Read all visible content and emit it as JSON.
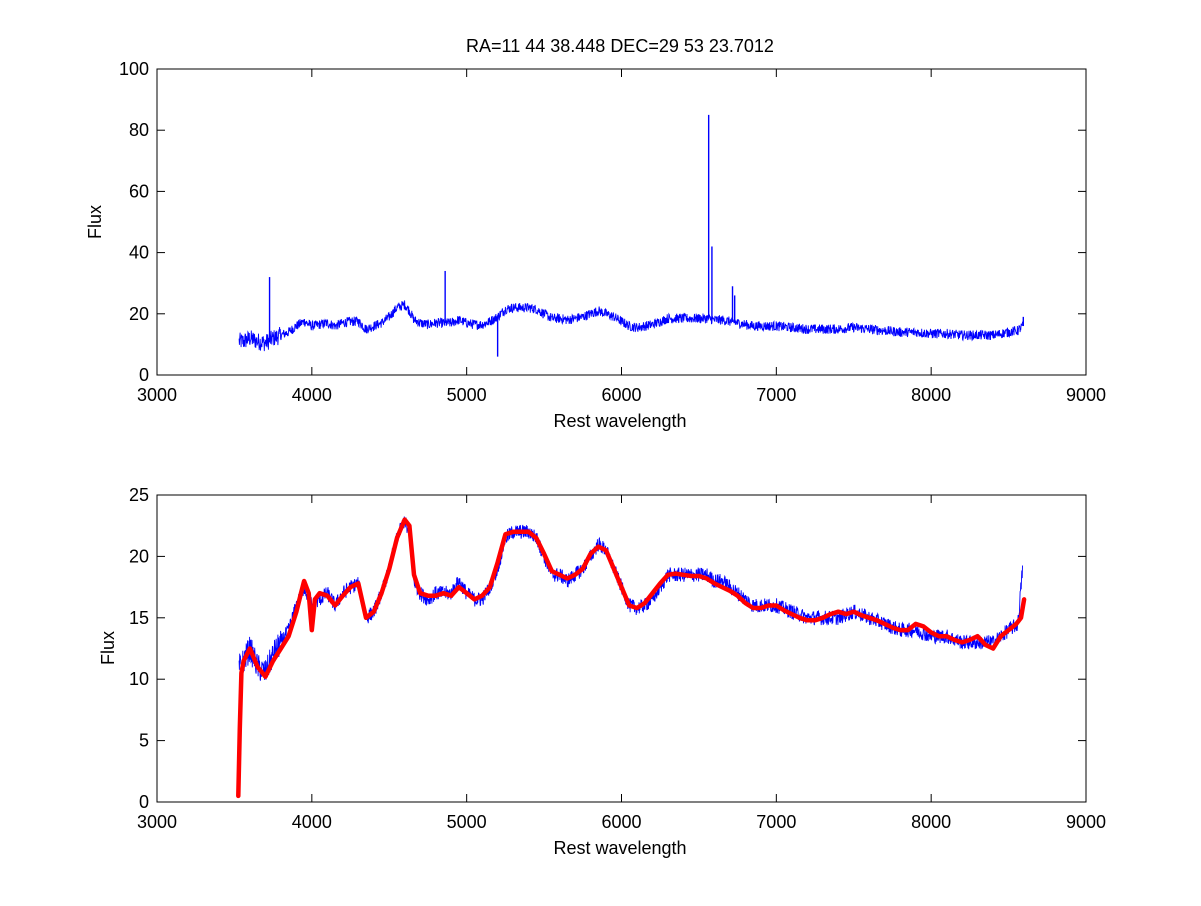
{
  "figure": {
    "title": "RA=11  44   38.448    DEC=29  53  23.7012"
  },
  "chart_data": [
    {
      "type": "line",
      "xlabel": "Rest wavelength",
      "ylabel": "Flux",
      "xlim": [
        3000,
        9000
      ],
      "ylim": [
        0,
        100
      ],
      "xticks": [
        "3000",
        "4000",
        "5000",
        "6000",
        "7000",
        "8000",
        "9000"
      ],
      "yticks": [
        "0",
        "20",
        "40",
        "60",
        "80",
        "100"
      ],
      "grid": false,
      "series": [
        {
          "color": "#0000ff",
          "x": [
            3530,
            3560,
            3600,
            3650,
            3700,
            3750,
            3800,
            3850,
            3900,
            3950,
            4000,
            4050,
            4100,
            4150,
            4200,
            4250,
            4300,
            4350,
            4400,
            4450,
            4500,
            4550,
            4600,
            4630,
            4660,
            4700,
            4750,
            4800,
            4850,
            4900,
            4950,
            5000,
            5050,
            5100,
            5150,
            5200,
            5250,
            5300,
            5350,
            5400,
            5450,
            5500,
            5550,
            5600,
            5650,
            5700,
            5750,
            5800,
            5850,
            5900,
            5950,
            6000,
            6050,
            6100,
            6150,
            6200,
            6250,
            6300,
            6350,
            6400,
            6450,
            6500,
            6550,
            6600,
            6650,
            6700,
            6750,
            6800,
            6850,
            6900,
            6950,
            7000,
            7100,
            7200,
            7300,
            7400,
            7500,
            7600,
            7700,
            7800,
            7900,
            8000,
            8100,
            8200,
            8300,
            8400,
            8500,
            8560,
            8590
          ],
          "y": [
            11,
            11,
            12,
            11,
            10.5,
            12,
            13,
            14,
            16,
            17.5,
            16,
            16.5,
            17,
            16,
            17,
            17.5,
            17.5,
            15,
            16,
            17,
            19,
            22,
            23,
            21,
            18,
            17,
            16.5,
            17,
            17,
            17,
            18,
            17,
            16.5,
            16.5,
            17.5,
            19,
            21.5,
            22,
            22,
            22,
            21.5,
            20,
            18.5,
            18.5,
            18,
            18.5,
            19,
            20,
            21,
            20,
            19,
            17.5,
            16,
            15.5,
            16,
            16.5,
            17.5,
            18.5,
            18.5,
            18.5,
            18.5,
            18.5,
            18.5,
            18,
            18,
            17.5,
            17,
            16.5,
            16,
            16,
            16,
            16,
            15.5,
            15,
            15,
            15,
            15.5,
            15,
            14.5,
            14,
            14,
            13.5,
            13.5,
            13,
            13,
            13,
            14,
            14.5,
            16
          ],
          "emission_lines": [
            {
              "x": 3727,
              "y": 32
            },
            {
              "x": 4861,
              "y": 34
            },
            {
              "x": 5200,
              "y": 6
            },
            {
              "x": 6563,
              "y": 85
            },
            {
              "x": 6584,
              "y": 42
            },
            {
              "x": 6717,
              "y": 29
            },
            {
              "x": 6731,
              "y": 26
            },
            {
              "x": 8595,
              "y": 19
            }
          ]
        }
      ]
    },
    {
      "type": "line",
      "xlabel": "Rest wavelength",
      "ylabel": "Flux",
      "xlim": [
        3000,
        9000
      ],
      "ylim": [
        0,
        25
      ],
      "xticks": [
        "3000",
        "4000",
        "5000",
        "6000",
        "7000",
        "8000",
        "9000"
      ],
      "yticks": [
        "0",
        "5",
        "10",
        "15",
        "20",
        "25"
      ],
      "grid": false,
      "series": [
        {
          "color": "#0000ff",
          "x": [
            3530,
            3560,
            3600,
            3650,
            3700,
            3750,
            3800,
            3850,
            3900,
            3950,
            4000,
            4050,
            4100,
            4150,
            4200,
            4250,
            4300,
            4350,
            4400,
            4450,
            4500,
            4550,
            4600,
            4630,
            4660,
            4700,
            4750,
            4800,
            4850,
            4900,
            4950,
            5000,
            5050,
            5100,
            5150,
            5200,
            5250,
            5300,
            5350,
            5400,
            5450,
            5500,
            5550,
            5600,
            5650,
            5700,
            5750,
            5800,
            5850,
            5900,
            5950,
            6000,
            6050,
            6100,
            6150,
            6200,
            6250,
            6300,
            6350,
            6400,
            6450,
            6500,
            6550,
            6600,
            6650,
            6700,
            6750,
            6800,
            6850,
            6900,
            6950,
            7000,
            7100,
            7200,
            7300,
            7400,
            7500,
            7600,
            7700,
            7800,
            7900,
            8000,
            8100,
            8200,
            8300,
            8400,
            8500,
            8560,
            8590
          ],
          "y": [
            11,
            11.5,
            12.5,
            11,
            10.5,
            12,
            13,
            14,
            16,
            17.5,
            16,
            16.5,
            17,
            16,
            17,
            17.5,
            17.8,
            15,
            15.5,
            17,
            19,
            21.5,
            23,
            21.5,
            18,
            17,
            16.5,
            17,
            17,
            17,
            18,
            17,
            16.5,
            16.5,
            17.5,
            19,
            21.5,
            22,
            22,
            22,
            21.5,
            20,
            18.5,
            18.5,
            18,
            18.5,
            19,
            20,
            21,
            20.5,
            19,
            17.5,
            16,
            15.8,
            16,
            16.5,
            17.5,
            18.5,
            18.5,
            18.5,
            18.5,
            18.5,
            18.5,
            18,
            18,
            17.5,
            17,
            16.5,
            16,
            16,
            16,
            16,
            15.5,
            15,
            15,
            15,
            15.5,
            15,
            14.5,
            14,
            14,
            13.5,
            13.5,
            13,
            13,
            13,
            14,
            14.5,
            19
          ]
        },
        {
          "color": "#ff0000",
          "x": [
            3525,
            3535,
            3545,
            3560,
            3600,
            3650,
            3700,
            3750,
            3800,
            3850,
            3900,
            3930,
            3950,
            3980,
            4000,
            4020,
            4050,
            4100,
            4150,
            4200,
            4250,
            4300,
            4350,
            4400,
            4450,
            4500,
            4550,
            4600,
            4630,
            4660,
            4700,
            4750,
            4800,
            4850,
            4900,
            4950,
            5000,
            5050,
            5100,
            5150,
            5200,
            5250,
            5300,
            5350,
            5400,
            5450,
            5500,
            5550,
            5600,
            5650,
            5700,
            5750,
            5800,
            5850,
            5900,
            5950,
            6000,
            6050,
            6100,
            6150,
            6200,
            6250,
            6300,
            6350,
            6400,
            6450,
            6500,
            6550,
            6600,
            6650,
            6700,
            6750,
            6800,
            6850,
            6900,
            6950,
            7000,
            7050,
            7100,
            7150,
            7200,
            7250,
            7300,
            7350,
            7400,
            7450,
            7500,
            7550,
            7600,
            7650,
            7700,
            7750,
            7800,
            7850,
            7900,
            7950,
            8000,
            8050,
            8100,
            8150,
            8200,
            8250,
            8300,
            8350,
            8400,
            8450,
            8500,
            8550,
            8580,
            8600
          ],
          "y": [
            0.5,
            6,
            10.5,
            11.5,
            12.5,
            11,
            10.2,
            11.5,
            12.5,
            13.5,
            15.5,
            17,
            18,
            17,
            14,
            16.5,
            17,
            16.8,
            16,
            16.8,
            17.5,
            17.8,
            15,
            15.5,
            17,
            19,
            21.5,
            23,
            22.5,
            18.5,
            17,
            16.8,
            16.8,
            17,
            16.8,
            17.5,
            17,
            16.5,
            16.8,
            17.5,
            19.5,
            21.8,
            22,
            22,
            22,
            21.5,
            20.2,
            18.8,
            18.5,
            18.2,
            18.5,
            19,
            20.2,
            20.8,
            20.5,
            19,
            17.5,
            16,
            15.8,
            16.2,
            17,
            17.8,
            18.5,
            18.6,
            18.5,
            18.4,
            18.4,
            18.2,
            17.8,
            17.5,
            17.2,
            16.8,
            16.2,
            15.8,
            15.8,
            16,
            16,
            15.6,
            15.3,
            15,
            14.8,
            14.8,
            15,
            15.3,
            15.5,
            15.3,
            15.5,
            15.2,
            15,
            14.8,
            14.5,
            14.2,
            14,
            14,
            14.5,
            14.3,
            13.8,
            13.5,
            13.5,
            13.2,
            13,
            13.2,
            13.5,
            12.8,
            12.5,
            13.5,
            14,
            14.5,
            15,
            16.5
          ]
        }
      ]
    }
  ]
}
